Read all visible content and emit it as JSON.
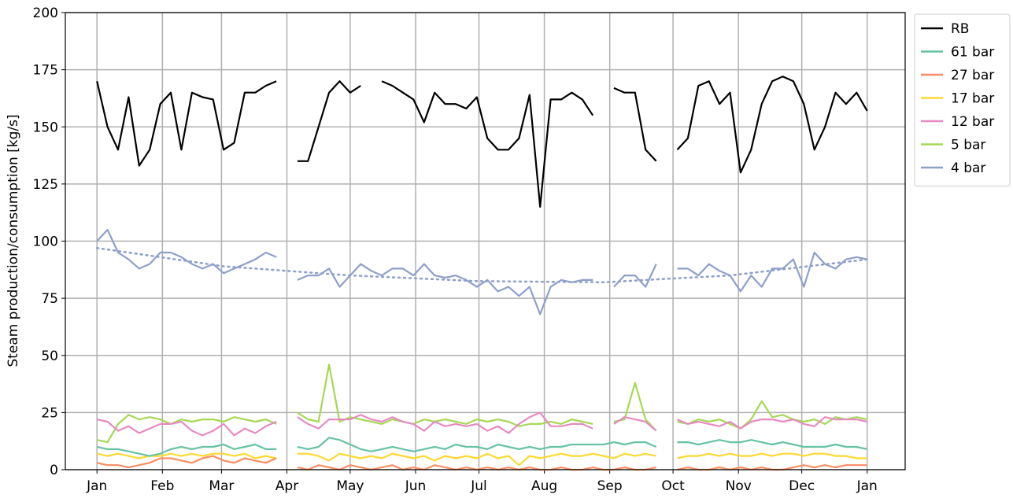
{
  "chart_data": {
    "type": "line",
    "ylabel": "Steam production/consumption [kg/s]",
    "x": [
      0,
      5,
      10,
      15,
      20,
      25,
      30,
      35,
      40,
      45,
      50,
      55,
      60,
      65,
      70,
      75,
      80,
      85,
      90,
      95,
      100,
      105,
      110,
      115,
      120,
      125,
      130,
      135,
      140,
      145,
      150,
      155,
      160,
      165,
      170,
      175,
      180,
      185,
      190,
      195,
      200,
      205,
      210,
      215,
      220,
      225,
      230,
      235,
      240,
      245,
      250,
      255,
      260,
      265,
      270,
      275,
      280,
      285,
      290,
      295,
      300,
      305,
      310,
      315,
      320,
      325,
      330,
      335,
      340,
      345,
      350,
      355,
      360,
      365
    ],
    "xlim": [
      -15,
      383
    ],
    "xticks": [
      {
        "value": 0,
        "label": "Jan"
      },
      {
        "value": 31,
        "label": "Feb"
      },
      {
        "value": 59,
        "label": "Mar"
      },
      {
        "value": 90,
        "label": "Apr"
      },
      {
        "value": 120,
        "label": "May"
      },
      {
        "value": 151,
        "label": "Jun"
      },
      {
        "value": 181,
        "label": "Jul"
      },
      {
        "value": 212,
        "label": "Aug"
      },
      {
        "value": 243,
        "label": "Sep"
      },
      {
        "value": 273,
        "label": "Oct"
      },
      {
        "value": 304,
        "label": "Nov"
      },
      {
        "value": 334,
        "label": "Dec"
      },
      {
        "value": 365,
        "label": "Jan"
      }
    ],
    "ylim": [
      0,
      200
    ],
    "yticks": [
      0,
      25,
      50,
      75,
      100,
      125,
      150,
      175,
      200
    ],
    "grid": true,
    "legend": "outside-right",
    "series": [
      {
        "name": "RB",
        "color": "#000000",
        "values": [
          170,
          150,
          140,
          163,
          133,
          140,
          160,
          165,
          140,
          165,
          163,
          162,
          140,
          143,
          165,
          165,
          168,
          170,
          null,
          135,
          135,
          150,
          165,
          170,
          165,
          168,
          null,
          170,
          168,
          165,
          162,
          152,
          165,
          160,
          160,
          158,
          163,
          145,
          140,
          140,
          145,
          164,
          115,
          162,
          162,
          165,
          162,
          155,
          null,
          167,
          165,
          165,
          140,
          135,
          null,
          140,
          145,
          168,
          170,
          160,
          165,
          130,
          140,
          160,
          170,
          172,
          170,
          160,
          140,
          150,
          165,
          160,
          165,
          157
        ]
      },
      {
        "name": "61 bar",
        "color": "#66c2a5",
        "values": [
          10,
          9,
          9,
          8,
          7,
          6,
          7,
          9,
          10,
          9,
          10,
          10,
          11,
          9,
          10,
          11,
          9,
          9,
          null,
          10,
          9,
          10,
          14,
          13,
          11,
          9,
          8,
          9,
          10,
          9,
          8,
          9,
          10,
          9,
          11,
          10,
          10,
          9,
          11,
          10,
          9,
          10,
          9,
          10,
          10,
          11,
          11,
          11,
          11,
          12,
          11,
          12,
          12,
          10,
          null,
          12,
          12,
          11,
          12,
          13,
          12,
          12,
          13,
          12,
          11,
          12,
          11,
          10,
          10,
          10,
          11,
          10,
          10,
          9
        ]
      },
      {
        "name": "27 bar",
        "color": "#fc8d62",
        "values": [
          3,
          2,
          2,
          1,
          2,
          3,
          5,
          5,
          4,
          3,
          5,
          6,
          4,
          3,
          5,
          4,
          3,
          5,
          null,
          1,
          0,
          2,
          1,
          0,
          2,
          1,
          0,
          1,
          2,
          0,
          1,
          0,
          2,
          1,
          0,
          1,
          0,
          1,
          0,
          1,
          0,
          1,
          0,
          0,
          1,
          0,
          0,
          1,
          0,
          0,
          1,
          0,
          0,
          1,
          null,
          0,
          1,
          0,
          0,
          1,
          0,
          1,
          0,
          1,
          0,
          0,
          1,
          2,
          1,
          2,
          1,
          2,
          2,
          2
        ]
      },
      {
        "name": "17 bar",
        "color": "#ffd92f",
        "values": [
          7,
          6,
          7,
          6,
          5,
          6,
          6,
          7,
          6,
          7,
          6,
          7,
          7,
          6,
          7,
          5,
          6,
          5,
          null,
          7,
          7,
          6,
          4,
          7,
          6,
          5,
          6,
          5,
          7,
          6,
          5,
          6,
          4,
          6,
          5,
          6,
          5,
          7,
          5,
          6,
          2,
          6,
          5,
          6,
          7,
          6,
          6,
          7,
          6,
          5,
          7,
          6,
          7,
          6,
          null,
          5,
          6,
          6,
          7,
          6,
          7,
          6,
          6,
          7,
          6,
          7,
          7,
          6,
          7,
          7,
          6,
          6,
          5,
          5
        ]
      },
      {
        "name": "12 bar",
        "color": "#e78ac3",
        "values": [
          22,
          21,
          17,
          19,
          16,
          18,
          20,
          20,
          21,
          17,
          15,
          17,
          20,
          15,
          18,
          16,
          19,
          21,
          null,
          23,
          20,
          18,
          22,
          22,
          22,
          24,
          22,
          21,
          23,
          21,
          20,
          17,
          21,
          19,
          20,
          19,
          20,
          17,
          19,
          16,
          20,
          23,
          25,
          19,
          19,
          20,
          20,
          18,
          null,
          20,
          23,
          22,
          21,
          17,
          null,
          22,
          20,
          21,
          20,
          19,
          21,
          18,
          21,
          22,
          22,
          21,
          22,
          20,
          19,
          23,
          22,
          22,
          22,
          21
        ]
      },
      {
        "name": "5 bar",
        "color": "#a6d854",
        "values": [
          13,
          12,
          20,
          24,
          22,
          23,
          22,
          20,
          22,
          21,
          22,
          22,
          21,
          23,
          22,
          21,
          22,
          20,
          null,
          25,
          22,
          21,
          46,
          21,
          23,
          22,
          21,
          20,
          22,
          21,
          20,
          22,
          21,
          22,
          21,
          20,
          22,
          21,
          22,
          21,
          19,
          20,
          20,
          21,
          20,
          22,
          21,
          20,
          null,
          21,
          22,
          38,
          22,
          17,
          null,
          21,
          20,
          22,
          21,
          22,
          20,
          18,
          22,
          30,
          23,
          24,
          22,
          21,
          22,
          20,
          23,
          22,
          23,
          22
        ]
      },
      {
        "name": "4 bar",
        "color": "#8da0cb",
        "values": [
          100,
          105,
          95,
          92,
          88,
          90,
          95,
          95,
          93,
          90,
          88,
          90,
          86,
          88,
          90,
          92,
          95,
          93,
          null,
          83,
          85,
          85,
          88,
          80,
          85,
          90,
          87,
          85,
          88,
          88,
          85,
          90,
          85,
          84,
          85,
          83,
          80,
          83,
          78,
          80,
          76,
          80,
          68,
          80,
          83,
          82,
          83,
          83,
          null,
          80,
          85,
          85,
          80,
          90,
          null,
          88,
          88,
          85,
          90,
          87,
          85,
          78,
          85,
          80,
          88,
          88,
          92,
          80,
          95,
          90,
          88,
          92,
          93,
          92
        ]
      }
    ],
    "trend": {
      "x": [
        0,
        60,
        120,
        180,
        240,
        300,
        365
      ],
      "values": [
        97,
        89,
        85,
        82.5,
        82,
        85,
        92
      ],
      "color": "#8da0cb"
    }
  }
}
